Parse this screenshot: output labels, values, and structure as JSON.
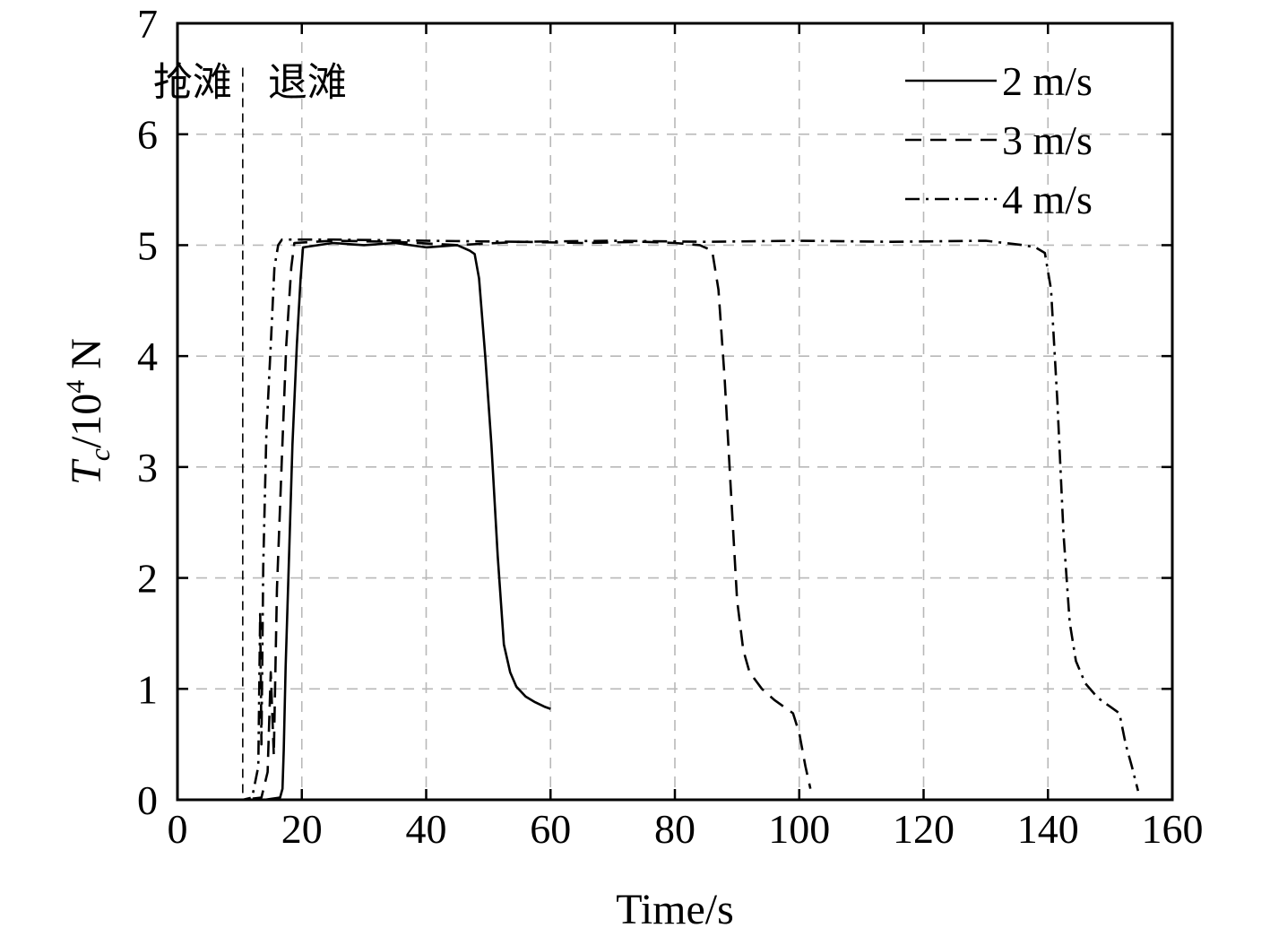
{
  "chart_data": {
    "type": "line",
    "title": "",
    "xlabel": "Time/s",
    "ylabel_main": "T",
    "ylabel_sub": "c",
    "ylabel_rest": "/10",
    "ylabel_sup": "4",
    "ylabel_unit": " N",
    "xlim": [
      0,
      160
    ],
    "ylim": [
      0,
      7
    ],
    "xticks": [
      0,
      20,
      40,
      60,
      80,
      100,
      120,
      140,
      160
    ],
    "yticks": [
      0,
      1,
      2,
      3,
      4,
      5,
      6,
      7
    ],
    "grid": true,
    "legend_position": "top-right",
    "phase_marker": {
      "x": 10.5,
      "left_label": "抢滩",
      "right_label": "退滩"
    },
    "series": [
      {
        "name": "2 m/s",
        "dash": "solid",
        "x": [
          0,
          10.5,
          14,
          16.5,
          16.9,
          17.1,
          17.4,
          18,
          18.5,
          19.2,
          19.8,
          20.2,
          25,
          30,
          35,
          40,
          45,
          47,
          47.8,
          48.5,
          49.5,
          50.5,
          51.5,
          52.5,
          53.5,
          54.5,
          56,
          57.5,
          59,
          60
        ],
        "y": [
          0,
          0,
          0,
          0.02,
          0.1,
          0.45,
          1.2,
          2.3,
          3.2,
          4.1,
          4.7,
          4.98,
          5.02,
          5.0,
          5.02,
          4.98,
          5.0,
          4.95,
          4.92,
          4.7,
          4.0,
          3.2,
          2.2,
          1.4,
          1.15,
          1.02,
          0.93,
          0.88,
          0.84,
          0.82
        ]
      },
      {
        "name": "3 m/s",
        "dash": "dashed",
        "x": [
          0,
          10.5,
          13.5,
          14.5,
          15.0,
          15.5,
          16.0,
          16.8,
          17.5,
          18.3,
          18.8,
          25,
          35,
          45,
          55,
          65,
          75,
          80,
          84,
          86,
          87,
          88,
          89,
          90,
          91,
          92,
          94,
          96,
          98,
          99,
          100,
          101,
          101.8
        ],
        "y": [
          0,
          0,
          0.02,
          0.25,
          1.15,
          0.4,
          1.9,
          3.1,
          4.1,
          4.8,
          5.02,
          5.04,
          5.03,
          5.0,
          5.03,
          5.02,
          5.03,
          5.02,
          5.0,
          4.95,
          4.6,
          3.8,
          2.8,
          1.8,
          1.35,
          1.15,
          1.0,
          0.9,
          0.82,
          0.78,
          0.6,
          0.3,
          0.1
        ]
      },
      {
        "name": "4 m/s",
        "dash": "dashdot",
        "x": [
          0,
          10.5,
          12.0,
          13.0,
          13.3,
          13.5,
          13.8,
          14.3,
          15.0,
          15.6,
          16.2,
          16.8,
          25,
          40,
          55,
          70,
          85,
          100,
          115,
          130,
          136,
          138,
          139.5,
          140.5,
          141.5,
          142.5,
          143.5,
          144.5,
          146,
          148,
          150,
          151.5,
          152.5,
          153.5,
          154.5
        ],
        "y": [
          0,
          0,
          0.02,
          0.3,
          1.7,
          0.5,
          2.1,
          3.3,
          4.1,
          4.8,
          5.0,
          5.05,
          5.05,
          5.04,
          5.03,
          5.04,
          5.03,
          5.04,
          5.03,
          5.04,
          5.0,
          4.98,
          4.93,
          4.6,
          3.6,
          2.4,
          1.6,
          1.25,
          1.05,
          0.92,
          0.84,
          0.78,
          0.5,
          0.3,
          0.08
        ]
      }
    ]
  }
}
